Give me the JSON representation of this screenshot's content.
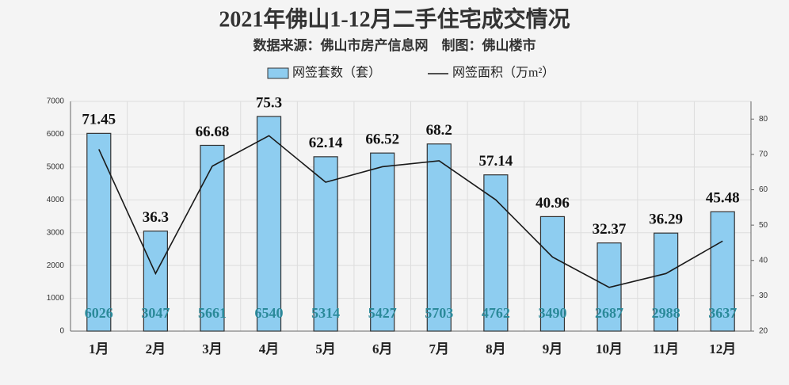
{
  "chart_data": {
    "type": "bar-line",
    "title": "2021年佛山1-12月二手住宅成交情况",
    "subtitle": "数据来源：佛山市房产信息网　制图：佛山楼市",
    "categories": [
      "1月",
      "2月",
      "3月",
      "4月",
      "5月",
      "6月",
      "7月",
      "8月",
      "9月",
      "10月",
      "11月",
      "12月"
    ],
    "series": [
      {
        "name": "网签套数（套）",
        "type": "bar",
        "color": "#8ecdf0",
        "values": [
          6026,
          3047,
          5661,
          6540,
          5314,
          5427,
          5703,
          4762,
          3490,
          2687,
          2988,
          3637
        ]
      },
      {
        "name": "网签面积（万m²）",
        "type": "line",
        "axis": "y2",
        "color": "#1a1a1a",
        "values": [
          71.45,
          36.3,
          66.68,
          75.3,
          62.14,
          66.52,
          68.2,
          57.14,
          40.96,
          32.37,
          36.29,
          45.48
        ]
      }
    ],
    "ylim": [
      0,
      7000
    ],
    "yticks": [
      0,
      1000,
      2000,
      3000,
      4000,
      5000,
      6000,
      7000
    ],
    "y2lim": [
      20,
      85
    ],
    "y2ticks": [
      20,
      30,
      40,
      50,
      60,
      70,
      80
    ],
    "grid": true
  }
}
